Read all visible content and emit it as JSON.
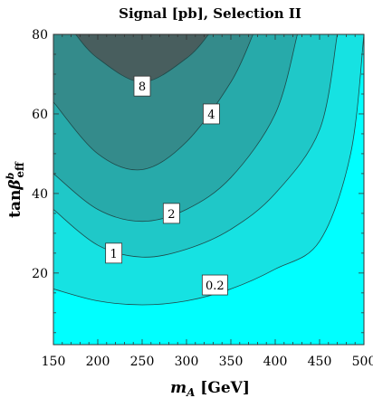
{
  "chart_data": {
    "type": "contour",
    "title": "Signal [pb], Selection II",
    "xlabel": "m_A [GeV]",
    "ylabel": "tanβ^b_eff",
    "xlim": [
      150,
      500
    ],
    "ylim": [
      2,
      80
    ],
    "x_ticks": [
      "150",
      "200",
      "250",
      "300",
      "350",
      "400",
      "450",
      "500"
    ],
    "y_ticks": [
      "20",
      "40",
      "60",
      "80"
    ],
    "levels": [
      {
        "label": "0.2",
        "value": 0.2,
        "color": "#16e2e2",
        "curve": [
          [
            150,
            16
          ],
          [
            200,
            13
          ],
          [
            250,
            12
          ],
          [
            300,
            13
          ],
          [
            350,
            16
          ],
          [
            400,
            21
          ],
          [
            450,
            28
          ],
          [
            485,
            50
          ],
          [
            500,
            80
          ]
        ],
        "label_pos": [
          332,
          17
        ]
      },
      {
        "label": "1",
        "value": 1,
        "color": "#1fc8c8",
        "curve": [
          [
            150,
            36
          ],
          [
            200,
            27
          ],
          [
            250,
            24
          ],
          [
            300,
            26
          ],
          [
            350,
            31
          ],
          [
            400,
            40
          ],
          [
            450,
            56
          ],
          [
            470,
            80
          ]
        ],
        "label_pos": [
          218,
          25
        ]
      },
      {
        "label": "2",
        "value": 2,
        "color": "#27aaaa",
        "curve": [
          [
            150,
            45
          ],
          [
            200,
            36
          ],
          [
            250,
            33
          ],
          [
            300,
            36
          ],
          [
            350,
            44
          ],
          [
            400,
            60
          ],
          [
            425,
            80
          ]
        ],
        "label_pos": [
          283,
          35
        ]
      },
      {
        "label": "4",
        "value": 4,
        "color": "#348b8b",
        "curve": [
          [
            150,
            63
          ],
          [
            200,
            50
          ],
          [
            250,
            46
          ],
          [
            300,
            53
          ],
          [
            350,
            68
          ],
          [
            375,
            80
          ]
        ],
        "label_pos": [
          328,
          60
        ]
      },
      {
        "label": "8",
        "value": 8,
        "color": "#485e5e",
        "curve": [
          [
            175,
            80
          ],
          [
            200,
            74
          ],
          [
            250,
            68
          ],
          [
            300,
            74
          ],
          [
            325,
            80
          ]
        ],
        "label_pos": [
          250,
          67
        ]
      }
    ],
    "background_color": "#00ffff",
    "grid": false
  }
}
